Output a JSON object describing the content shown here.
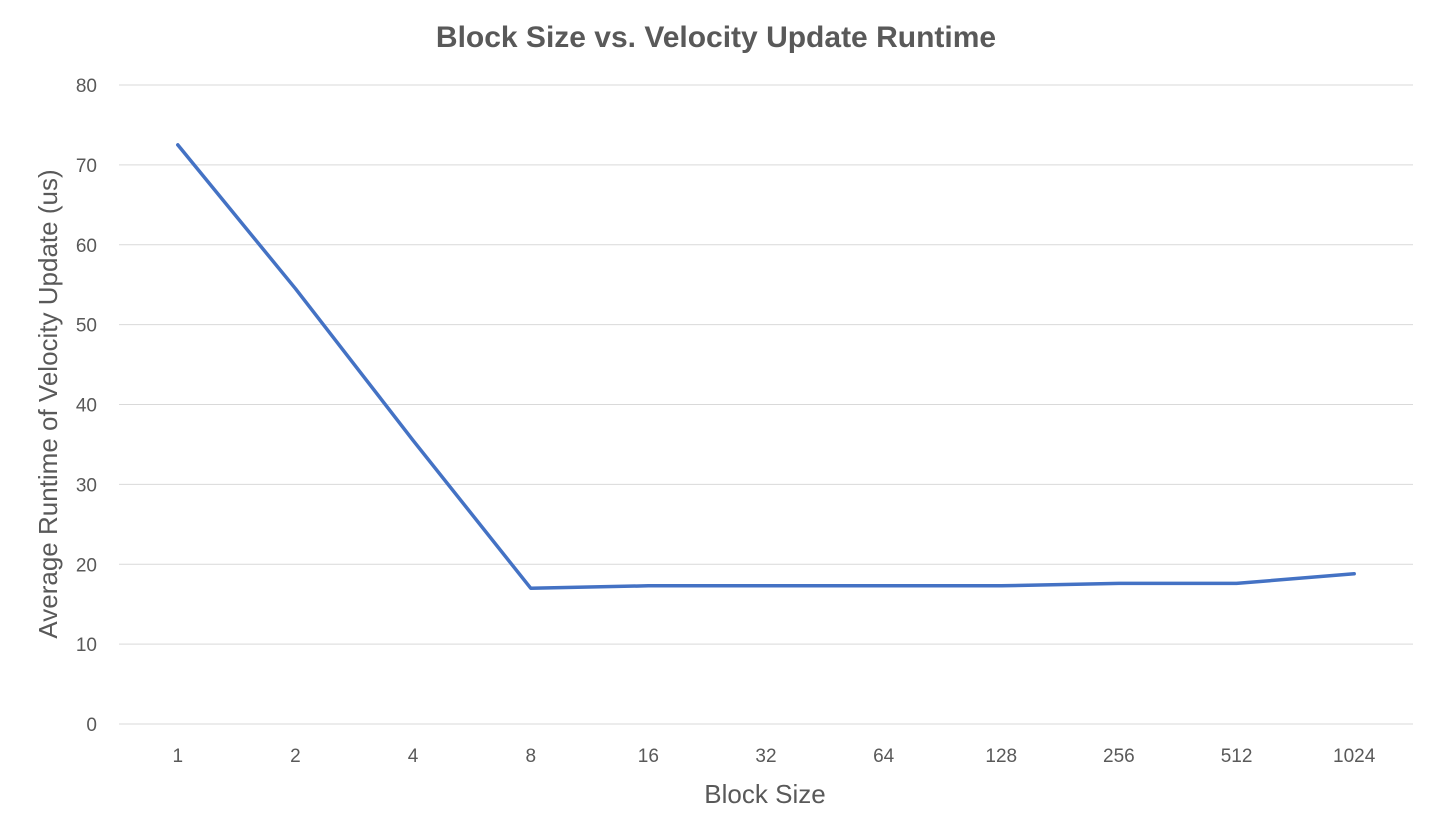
{
  "chart_data": {
    "type": "line",
    "title": "Block Size vs. Velocity Update Runtime",
    "xlabel": "Block Size",
    "ylabel": "Average Runtime of Velocity Update (us)",
    "categories": [
      "1",
      "2",
      "4",
      "8",
      "16",
      "32",
      "64",
      "128",
      "256",
      "512",
      "1024"
    ],
    "series": [
      {
        "values": [
          72.5,
          54.5,
          35.5,
          17.0,
          17.3,
          17.3,
          17.3,
          17.3,
          17.6,
          17.6,
          18.8
        ],
        "color": "#4472c4"
      }
    ],
    "ylim": [
      0,
      80
    ],
    "yticks": [
      0,
      10,
      20,
      30,
      40,
      50,
      60,
      70,
      80
    ],
    "grid": true,
    "legend": "none"
  }
}
